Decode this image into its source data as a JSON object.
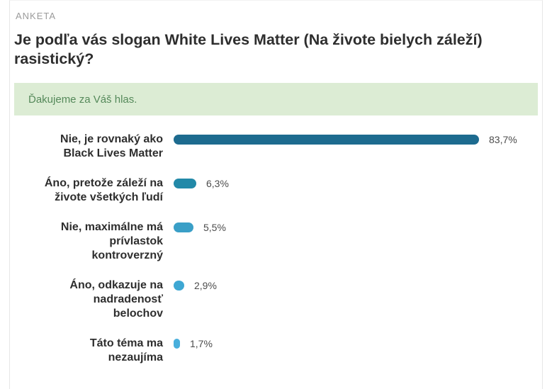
{
  "header": {
    "kicker": "ANKETA",
    "question": "Je podľa vás slogan White Lives Matter (Na živote bielych záleží) rasistický?"
  },
  "notice": {
    "message": "Ďakujeme za Váš hlas."
  },
  "colors": {
    "notice_bg": "#dcecd4",
    "notice_text": "#55895a",
    "kicker_text": "#9b9b9b",
    "title_text": "#2e2e2e",
    "percent_text": "#4c4c4c",
    "card_border": "#e7e7e7"
  },
  "chart_data": {
    "type": "bar",
    "orientation": "horizontal",
    "title": "Je podľa vás slogan White Lives Matter (Na živote bielych záleží) rasistický?",
    "xlim": [
      0,
      100
    ],
    "unit": "%",
    "grid": false,
    "legend": false,
    "rows": [
      {
        "label": "Nie, je rovnaký ako Black Lives Matter",
        "label_lines": [
          "Nie, je rovnaký ako",
          "Black Lives Matter"
        ],
        "value": 83.7,
        "value_label": "83,7%",
        "color": "#1d6b8f"
      },
      {
        "label": "Áno, pretože záleží na živote všetkých ľudí",
        "label_lines": [
          "Áno, pretože záleží na",
          "živote všetkých ľudí"
        ],
        "value": 6.3,
        "value_label": "6,3%",
        "color": "#2289a8"
      },
      {
        "label": "Nie, maximálne má prívlastok kontroverzný",
        "label_lines": [
          "Nie, maximálne má",
          "prívlastok",
          "kontroverzný"
        ],
        "value": 5.5,
        "value_label": "5,5%",
        "color": "#3a9fc7"
      },
      {
        "label": "Áno, odkazuje na nadradenosť belochov",
        "label_lines": [
          "Áno, odkazuje na",
          "nadradenosť",
          "belochov"
        ],
        "value": 2.9,
        "value_label": "2,9%",
        "color": "#3ea7d3"
      },
      {
        "label": "Táto téma ma nezaujíma",
        "label_lines": [
          "Táto téma ma",
          "nezaujíma"
        ],
        "value": 1.7,
        "value_label": "1,7%",
        "color": "#49afdc"
      }
    ]
  }
}
